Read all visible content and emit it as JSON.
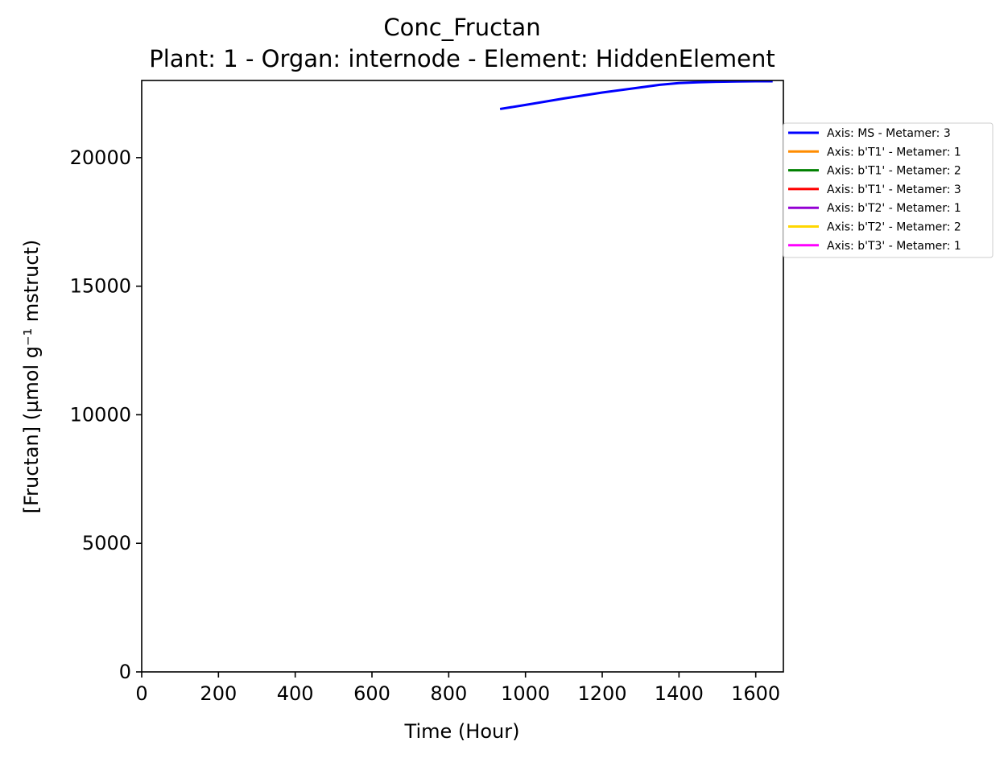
{
  "chart_data": {
    "type": "line",
    "title": "Conc_Fructan",
    "subtitle": "Plant: 1 - Organ: internode - Element: HiddenElement",
    "xlabel": "Time (Hour)",
    "ylabel": "[Fructan] (µmol g⁻¹ mstruct)",
    "xlim": [
      0,
      1672
    ],
    "ylim": [
      0,
      23000
    ],
    "xticks": [
      0,
      200,
      400,
      600,
      800,
      1000,
      1200,
      1400,
      1600
    ],
    "yticks": [
      0,
      5000,
      10000,
      15000,
      20000
    ],
    "grid": false,
    "legend_position": "outside-right",
    "series": [
      {
        "name": "Axis: MS - Metamer: 3",
        "color": "#0000ff",
        "x": [
          937,
          1000,
          1100,
          1200,
          1300,
          1350,
          1400,
          1450,
          1500,
          1550,
          1600,
          1641
        ],
        "y": [
          21900,
          22050,
          22300,
          22530,
          22730,
          22830,
          22900,
          22930,
          22950,
          22960,
          22970,
          22970
        ]
      },
      {
        "name": "Axis: b'T1' - Metamer: 1",
        "color": "#ff8c00",
        "x": [],
        "y": []
      },
      {
        "name": "Axis: b'T1' - Metamer: 2",
        "color": "#008000",
        "x": [],
        "y": []
      },
      {
        "name": "Axis: b'T1' - Metamer: 3",
        "color": "#ff0000",
        "x": [],
        "y": []
      },
      {
        "name": "Axis: b'T2' - Metamer: 1",
        "color": "#9400d3",
        "x": [],
        "y": []
      },
      {
        "name": "Axis: b'T2' - Metamer: 2",
        "color": "#ffd700",
        "x": [],
        "y": []
      },
      {
        "name": "Axis: b'T3' - Metamer: 1",
        "color": "#ff00ff",
        "x": [],
        "y": []
      }
    ]
  }
}
